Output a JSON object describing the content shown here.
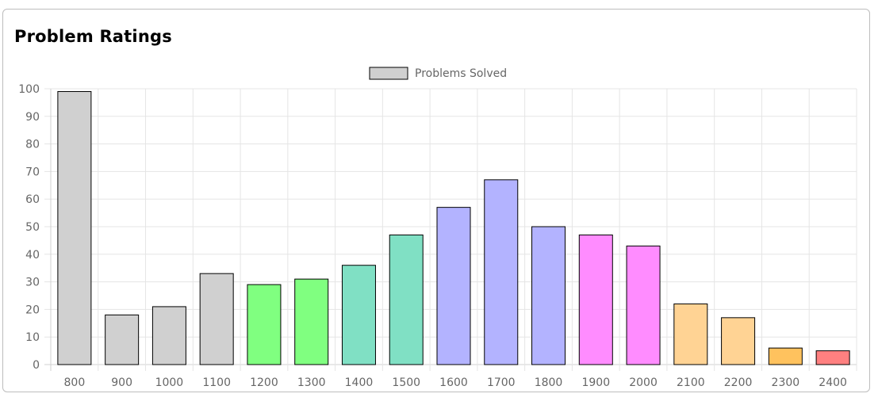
{
  "card": {
    "title": "Problem Ratings"
  },
  "chart_data": {
    "type": "bar",
    "categories": [
      "800",
      "900",
      "1000",
      "1100",
      "1200",
      "1300",
      "1400",
      "1500",
      "1600",
      "1700",
      "1800",
      "1900",
      "2000",
      "2100",
      "2200",
      "2300",
      "2400"
    ],
    "series": [
      {
        "name": "Problems Solved",
        "values": [
          99,
          18,
          21,
          33,
          29,
          31,
          36,
          47,
          57,
          67,
          50,
          47,
          43,
          22,
          17,
          6,
          5
        ]
      }
    ],
    "bar_colors": [
      "#d0d0d0",
      "#d0d0d0",
      "#d0d0d0",
      "#d0d0d0",
      "#80ff80",
      "#80ff80",
      "#80e0c4",
      "#80e0c4",
      "#b3b3ff",
      "#b3b3ff",
      "#b3b3ff",
      "#ff8cff",
      "#ff8cff",
      "#ffd394",
      "#ffd394",
      "#ffc25e",
      "#ff8080"
    ],
    "legend_color": "#d0d0d0",
    "bar_border_color": "#000000",
    "grid_color": "#e5e5e5",
    "yticks": [
      "0",
      "10",
      "20",
      "30",
      "40",
      "50",
      "60",
      "70",
      "80",
      "90",
      "100"
    ],
    "ylim": [
      0,
      100
    ],
    "grid": true,
    "legend_position": "top-center",
    "title": "",
    "xlabel": "",
    "ylabel": ""
  }
}
